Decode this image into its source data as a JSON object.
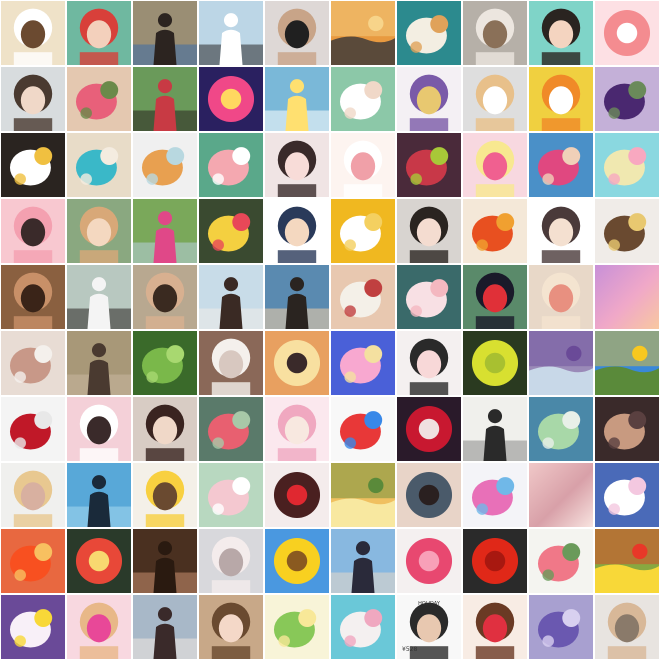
{
  "grid": {
    "columns": 10,
    "rows": 10,
    "background": "#ffffff"
  },
  "tiles": [
    {
      "name": "cartoon-bear",
      "bg": "#efe2c8",
      "fg": "#ffffff",
      "acc": "#6b4a30",
      "shape": "face"
    },
    {
      "name": "girl-red-hair",
      "bg": "#6fb8a0",
      "fg": "#d8403a",
      "acc": "#f3d0bc",
      "shape": "face"
    },
    {
      "name": "girl-back-view",
      "bg": "#9a8e74",
      "fg": "#2c2420",
      "acc": "#3d6ca8",
      "shape": "person"
    },
    {
      "name": "girl-field",
      "bg": "#bcd6e6",
      "fg": "#ffffff",
      "acc": "#2a2a2a",
      "shape": "person"
    },
    {
      "name": "girl-sunglasses",
      "bg": "#ded8d6",
      "fg": "#c8a488",
      "acc": "#202020",
      "shape": "face"
    },
    {
      "name": "sunset-lake",
      "bg": "#e89a40",
      "fg": "#f7d48a",
      "acc": "#5a4a3a",
      "shape": "landscape"
    },
    {
      "name": "dessert-plate",
      "bg": "#2c8a8e",
      "fg": "#f3eee2",
      "acc": "#e0a25a",
      "shape": "blob"
    },
    {
      "name": "cat-closeup",
      "bg": "#b6b0a8",
      "fg": "#ece6df",
      "acc": "#8a7058",
      "shape": "face"
    },
    {
      "name": "girl-flower-mouth",
      "bg": "#7fd4c8",
      "fg": "#2a2420",
      "acc": "#f4d4c0",
      "shape": "face"
    },
    {
      "name": "grapefruit",
      "bg": "#fde0e4",
      "fg": "#f48c90",
      "acc": "#ffffff",
      "shape": "ring"
    },
    {
      "name": "girl-side-face",
      "bg": "#d8dcde",
      "fg": "#4a3a30",
      "acc": "#f0d8c8",
      "shape": "face"
    },
    {
      "name": "roses-bouquet",
      "bg": "#e4c8b0",
      "fg": "#e8607a",
      "acc": "#6a8a4a",
      "shape": "blob"
    },
    {
      "name": "girl-garden",
      "bg": "#6a9a5a",
      "fg": "#c83a44",
      "acc": "#2a2420",
      "shape": "person"
    },
    {
      "name": "sky-lantern",
      "bg": "#2a2060",
      "fg": "#f04888",
      "acc": "#ffd860",
      "shape": "ring"
    },
    {
      "name": "girl-flower-cover",
      "bg": "#7ab8d8",
      "fg": "#ffe070",
      "acc": "#ffffff",
      "shape": "person"
    },
    {
      "name": "white-flower-hand",
      "bg": "#8cc8a8",
      "fg": "#ffffff",
      "acc": "#f0d8c8",
      "shape": "blob"
    },
    {
      "name": "anime-hat-girl",
      "bg": "#f4f0f4",
      "fg": "#7a5aa8",
      "acc": "#e8c870",
      "shape": "face"
    },
    {
      "name": "cartoon-deer",
      "bg": "#dedede",
      "fg": "#e8c08a",
      "acc": "#ffffff",
      "shape": "face"
    },
    {
      "name": "yellow-duck",
      "bg": "#f0d040",
      "fg": "#f08a28",
      "acc": "#ffffff",
      "shape": "face"
    },
    {
      "name": "purple-tulip",
      "bg": "#c4b0d8",
      "fg": "#4a2870",
      "acc": "#6a8a5a",
      "shape": "blob"
    },
    {
      "name": "daisies-dark",
      "bg": "#2a2420",
      "fg": "#ffffff",
      "acc": "#f0c040",
      "shape": "blob"
    },
    {
      "name": "blue-starfish",
      "bg": "#e8dcc8",
      "fg": "#3ab8c8",
      "acc": "#f4ece0",
      "shape": "blob"
    },
    {
      "name": "orange-cat",
      "bg": "#f0f0f0",
      "fg": "#e8a050",
      "acc": "#b8d8e0",
      "shape": "blob"
    },
    {
      "name": "pink-peach",
      "bg": "#5aa88a",
      "fg": "#f4a8b0",
      "acc": "#ffffff",
      "shape": "blob"
    },
    {
      "name": "anime-girl-face",
      "bg": "#f0e4e4",
      "fg": "#3a2a2a",
      "acc": "#f8dcd8",
      "shape": "face"
    },
    {
      "name": "white-cartoon-dog",
      "bg": "#fdf4f0",
      "fg": "#ffffff",
      "acc": "#f0a0a8",
      "shape": "face"
    },
    {
      "name": "fruits-mix",
      "bg": "#4a2a3a",
      "fg": "#c83848",
      "acc": "#a8c838",
      "shape": "blob"
    },
    {
      "name": "chick-pink",
      "bg": "#f8d8e0",
      "fg": "#f8e890",
      "acc": "#f06090",
      "shape": "face"
    },
    {
      "name": "flowers-hand-sky",
      "bg": "#4a90c8",
      "fg": "#e04880",
      "acc": "#f0d0b8",
      "shape": "blob"
    },
    {
      "name": "easter-eggs",
      "bg": "#8ad8e0",
      "fg": "#f0e8b0",
      "acc": "#f8a8c0",
      "shape": "blob"
    },
    {
      "name": "cartoon-pig",
      "bg": "#f8c8d0",
      "fg": "#f4a0b0",
      "acc": "#3a2a2a",
      "shape": "face"
    },
    {
      "name": "girl-flower-crown",
      "bg": "#8aa880",
      "fg": "#d8a878",
      "acc": "#f4d8c0",
      "shape": "face"
    },
    {
      "name": "woman-pink-hill",
      "bg": "#7aa85a",
      "fg": "#e04888",
      "acc": "#b8d0e0",
      "shape": "person"
    },
    {
      "name": "flower-arrangement",
      "bg": "#3a4a30",
      "fg": "#f4d040",
      "acc": "#e84858",
      "shape": "blob"
    },
    {
      "name": "cartoon-boy-cap",
      "bg": "#ffffff",
      "fg": "#2a3a5a",
      "acc": "#f4d8c0",
      "shape": "face"
    },
    {
      "name": "white-daisy-yellow",
      "bg": "#f0b820",
      "fg": "#ffffff",
      "acc": "#f4d060",
      "shape": "blob"
    },
    {
      "name": "girl-portrait",
      "bg": "#d8d4d0",
      "fg": "#2a2420",
      "acc": "#f4dcd0",
      "shape": "face"
    },
    {
      "name": "red-maple-leaf",
      "bg": "#f4e8d8",
      "fg": "#e85020",
      "acc": "#f0a030",
      "shape": "blob"
    },
    {
      "name": "anime-cap-girl",
      "bg": "#ffffff",
      "fg": "#4a3a3a",
      "acc": "#f4e0d0",
      "shape": "face"
    },
    {
      "name": "hair-clip",
      "bg": "#f0ece8",
      "fg": "#6a4a30",
      "acc": "#e8c870",
      "shape": "blob"
    },
    {
      "name": "teddy-bear",
      "bg": "#8a6040",
      "fg": "#c89068",
      "acc": "#3a2418",
      "shape": "face"
    },
    {
      "name": "girl-white-tshirt",
      "bg": "#b8c8c0",
      "fg": "#f4f4f4",
      "acc": "#2a2420",
      "shape": "person"
    },
    {
      "name": "girl-hands-head",
      "bg": "#b8a890",
      "fg": "#d8b090",
      "acc": "#3a2a20",
      "shape": "face"
    },
    {
      "name": "woman-beach-sit",
      "bg": "#c8dce8",
      "fg": "#3a2a24",
      "acc": "#f0ece8",
      "shape": "person"
    },
    {
      "name": "woman-sea-dress",
      "bg": "#5a8ab0",
      "fg": "#2a2420",
      "acc": "#f4d0a8",
      "shape": "person"
    },
    {
      "name": "rose-lips",
      "bg": "#e8c8b0",
      "fg": "#f4f0e8",
      "acc": "#c04040",
      "shape": "blob"
    },
    {
      "name": "lotus-bud",
      "bg": "#3a6a6a",
      "fg": "#f8e0e4",
      "acc": "#f4b8c0",
      "shape": "blob"
    },
    {
      "name": "snow-white",
      "bg": "#5a8a6a",
      "fg": "#1a1a2a",
      "acc": "#e03038",
      "shape": "face"
    },
    {
      "name": "yawning-cat",
      "bg": "#e8d8c8",
      "fg": "#f4e4d0",
      "acc": "#e89080",
      "shape": "face"
    },
    {
      "name": "pink-purple-gradient",
      "bg": "#c890d8",
      "fg": "#f8c8a0",
      "acc": "#f0a8c8",
      "shape": "gradient"
    },
    {
      "name": "plush-toys",
      "bg": "#e8dcd4",
      "fg": "#c89888",
      "acc": "#f4f0ec",
      "shape": "blob"
    },
    {
      "name": "woman-back-hands",
      "bg": "#a89878",
      "fg": "#4a3a30",
      "acc": "#c8b8a0",
      "shape": "person"
    },
    {
      "name": "green-leaves",
      "bg": "#3a6a2a",
      "fg": "#7ab84a",
      "acc": "#a8d870",
      "shape": "blob"
    },
    {
      "name": "white-kitten",
      "bg": "#8a6858",
      "fg": "#f4f0ec",
      "acc": "#d8c8c0",
      "shape": "face"
    },
    {
      "name": "sun-between-hands",
      "bg": "#e8a060",
      "fg": "#f8e0a0",
      "acc": "#3a2a2a",
      "shape": "ring"
    },
    {
      "name": "ice-cream-poster",
      "bg": "#4a60d8",
      "fg": "#f8a8d0",
      "acc": "#f4e0a0",
      "shape": "blob"
    },
    {
      "name": "child-bunny-ears",
      "bg": "#f4f0f0",
      "fg": "#2a2a2a",
      "acc": "#f8d8d8",
      "shape": "face"
    },
    {
      "name": "green-fruit",
      "bg": "#2a3a20",
      "fg": "#d8e030",
      "acc": "#a8c030",
      "shape": "ring"
    },
    {
      "name": "lavender-field",
      "bg": "#9a8ab8",
      "fg": "#6a4a98",
      "acc": "#c8d8e8",
      "shape": "landscape"
    },
    {
      "name": "sunflower-field",
      "bg": "#3a88d8",
      "fg": "#f8c820",
      "acc": "#5a8a3a",
      "shape": "landscape"
    },
    {
      "name": "red-wine-glass",
      "bg": "#f4f4f4",
      "fg": "#c01828",
      "acc": "#e8e8e8",
      "shape": "blob"
    },
    {
      "name": "pink-hat-dog",
      "bg": "#f4d0d8",
      "fg": "#ffffff",
      "acc": "#3a2a2a",
      "shape": "face"
    },
    {
      "name": "girl-long-hair",
      "bg": "#d8ccc4",
      "fg": "#3a2420",
      "acc": "#f0d8c8",
      "shape": "face"
    },
    {
      "name": "succulent-plant",
      "bg": "#5a7a6a",
      "fg": "#e86070",
      "acc": "#a8c8a8",
      "shape": "blob"
    },
    {
      "name": "anime-pink-girl",
      "bg": "#fbe8ee",
      "fg": "#f0a8c0",
      "acc": "#f8e8e0",
      "shape": "face"
    },
    {
      "name": "balloons",
      "bg": "#f8f8f8",
      "fg": "#e83838",
      "acc": "#3888e8",
      "shape": "blob"
    },
    {
      "name": "pomegranate",
      "bg": "#2a1a2a",
      "fg": "#c81830",
      "acc": "#f0e0e0",
      "shape": "ring"
    },
    {
      "name": "ink-swordsman",
      "bg": "#f0f0ec",
      "fg": "#2a2a2a",
      "acc": "#8a8a8a",
      "shape": "person"
    },
    {
      "name": "green-cat-blue",
      "bg": "#4a88a8",
      "fg": "#a8d8a8",
      "acc": "#e8f0e8",
      "shape": "blob"
    },
    {
      "name": "hand-on-shoulder",
      "bg": "#3a2a2a",
      "fg": "#c89a80",
      "acc": "#5a4040",
      "shape": "blob"
    },
    {
      "name": "blonde-woman",
      "bg": "#f0f0ee",
      "fg": "#e8c890",
      "acc": "#d8b0a0",
      "shape": "face"
    },
    {
      "name": "heart-hands-sea",
      "bg": "#58a8d8",
      "fg": "#1a2a3a",
      "acc": "#a8d8f0",
      "shape": "person"
    },
    {
      "name": "cartoon-pikachu",
      "bg": "#f4f0e8",
      "fg": "#f8d040",
      "acc": "#6a4a30",
      "shape": "face"
    },
    {
      "name": "lotus-flower",
      "bg": "#b8d8c0",
      "fg": "#f4c8d0",
      "acc": "#ffffff",
      "shape": "blob"
    },
    {
      "name": "strawberry-cake",
      "bg": "#f4ecec",
      "fg": "#4a2020",
      "acc": "#e02830",
      "shape": "ring"
    },
    {
      "name": "sunset-path",
      "bg": "#f0c060",
      "fg": "#5a8a3a",
      "acc": "#f8e8a0",
      "shape": "landscape"
    },
    {
      "name": "eye-closeup",
      "bg": "#e8d4c8",
      "fg": "#4a5a6a",
      "acc": "#2a2020",
      "shape": "ring"
    },
    {
      "name": "colorful-shorts",
      "bg": "#f4f4f8",
      "fg": "#e870b8",
      "acc": "#70b8e8",
      "shape": "blob"
    },
    {
      "name": "pink-clouds",
      "bg": "#f0c8c8",
      "fg": "#f8e4e0",
      "acc": "#d8a0a8",
      "shape": "gradient"
    },
    {
      "name": "white-cosmos",
      "bg": "#4a6ab8",
      "fg": "#ffffff",
      "acc": "#f4c8e0",
      "shape": "blob"
    },
    {
      "name": "red-flower-sunset",
      "bg": "#e86840",
      "fg": "#f85020",
      "acc": "#f8c060",
      "shape": "blob"
    },
    {
      "name": "fruit-platter",
      "bg": "#2a3a2a",
      "fg": "#e84838",
      "acc": "#f8d870",
      "shape": "ring"
    },
    {
      "name": "silhouette-hand",
      "bg": "#4a3020",
      "fg": "#2a1a10",
      "acc": "#c89070",
      "shape": "person"
    },
    {
      "name": "girl-soft-light",
      "bg": "#d8d8dc",
      "fg": "#f4ecec",
      "acc": "#b8a8a8",
      "shape": "face"
    },
    {
      "name": "sunflower",
      "bg": "#4a98e0",
      "fg": "#f8d020",
      "acc": "#8a5a20",
      "shape": "ring"
    },
    {
      "name": "woman-hat-sea",
      "bg": "#88b8e0",
      "fg": "#2a2a3a",
      "acc": "#e8d8c8",
      "shape": "person"
    },
    {
      "name": "pink-rose",
      "bg": "#f4f0f0",
      "fg": "#e84870",
      "acc": "#f8a0b8",
      "shape": "ring"
    },
    {
      "name": "red-umbrella",
      "bg": "#2a2a2a",
      "fg": "#e02818",
      "acc": "#a81810",
      "shape": "ring"
    },
    {
      "name": "pink-flower-basket",
      "bg": "#f4f4f0",
      "fg": "#f07888",
      "acc": "#6a9a5a",
      "shape": "blob"
    },
    {
      "name": "field-flowers",
      "bg": "#88a840",
      "fg": "#e83828",
      "acc": "#f8d838",
      "shape": "landscape"
    },
    {
      "name": "pansies",
      "bg": "#6a4a98",
      "fg": "#f8f0f8",
      "acc": "#f8d838",
      "shape": "blob"
    },
    {
      "name": "dog-sunglasses",
      "bg": "#f8d8e0",
      "fg": "#e8b888",
      "acc": "#e84898",
      "shape": "face"
    },
    {
      "name": "woman-sea-back",
      "bg": "#a8b8c8",
      "fg": "#3a2a2a",
      "acc": "#f0e8e0",
      "shape": "person"
    },
    {
      "name": "child-bow-hat",
      "bg": "#c8a888",
      "fg": "#6a4a30",
      "acc": "#f4d8c8",
      "shape": "face"
    },
    {
      "name": "green-leaf-light",
      "bg": "#f8f4d8",
      "fg": "#88c858",
      "acc": "#f8e898",
      "shape": "blob"
    },
    {
      "name": "flowers-sky-teal",
      "bg": "#6ac8d8",
      "fg": "#f4f0f0",
      "acc": "#f0a8c0",
      "shape": "blob"
    },
    {
      "name": "fashion-poster",
      "bg": "#f8f8f8",
      "fg": "#2a2a2a",
      "acc": "#e8c8b0",
      "shape": "face",
      "caption_top": "HOLIDAY",
      "caption_bottom": "¥528"
    },
    {
      "name": "girl-red-lips",
      "bg": "#f8ece4",
      "fg": "#6a3a24",
      "acc": "#e03040",
      "shape": "face"
    },
    {
      "name": "purple-iris",
      "bg": "#a8a0d0",
      "fg": "#6a58b0",
      "acc": "#d8d0f0",
      "shape": "blob"
    },
    {
      "name": "monk-portrait",
      "bg": "#e8e4e0",
      "fg": "#d8b898",
      "acc": "#8a7a6a",
      "shape": "face"
    }
  ]
}
